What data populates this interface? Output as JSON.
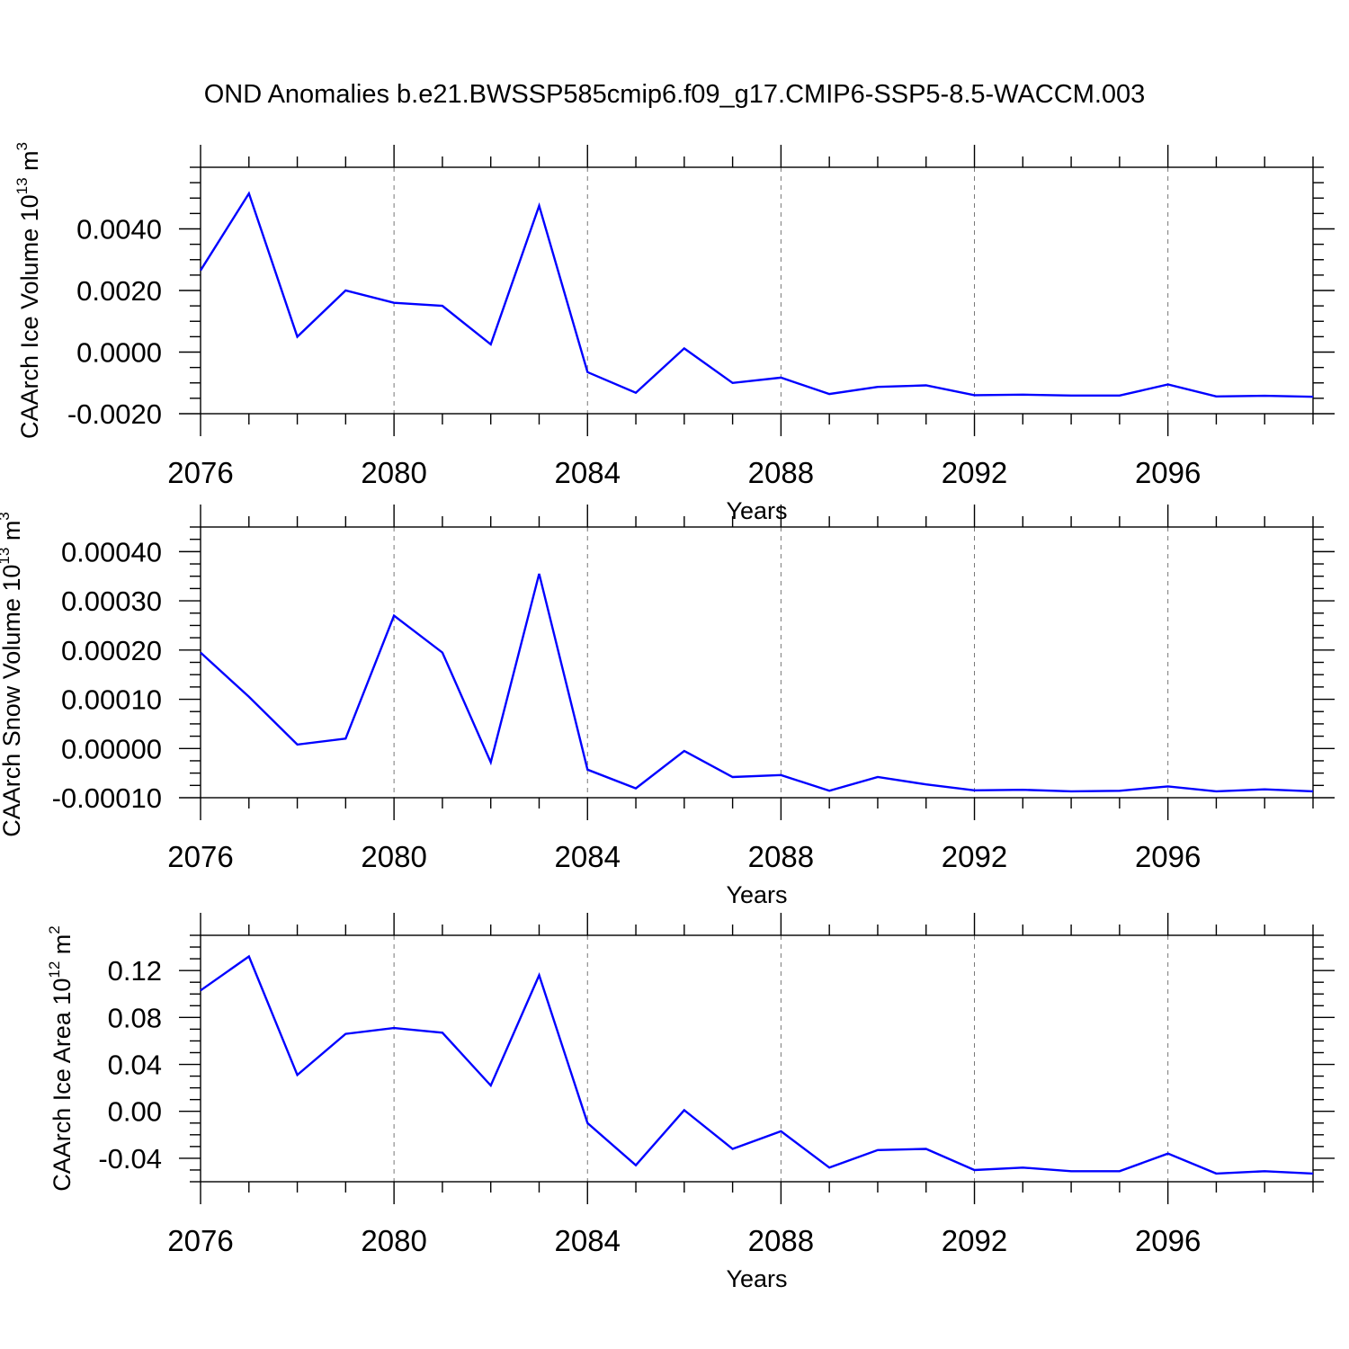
{
  "title": "OND Anomalies b.e21.BWSSP585cmip6.f09_g17.CMIP6-SSP5-8.5-WACCM.003",
  "colors": {
    "line": "#0000ff",
    "axis": "#000000",
    "grid": "#777777"
  },
  "chart_data": [
    {
      "type": "line",
      "xlabel": "Years",
      "ylabel": {
        "text": "CAArch Ice Volume 10",
        "exp": "13",
        "unit": " m",
        "unit_exp": "3"
      },
      "xlim": [
        2076,
        2099
      ],
      "ylim": [
        -0.002,
        0.006
      ],
      "xticks": [
        "2076",
        "2080",
        "2084",
        "2088",
        "2092",
        "2096"
      ],
      "yticks": [
        "-0.0020",
        "0.0000",
        "0.0020",
        "0.0040"
      ],
      "grid": "vertical dashed",
      "x": [
        2076,
        2077,
        2078,
        2079,
        2080,
        2081,
        2082,
        2083,
        2084,
        2085,
        2086,
        2087,
        2088,
        2089,
        2090,
        2091,
        2092,
        2093,
        2094,
        2095,
        2096,
        2097,
        2098,
        2099
      ],
      "values": [
        0.00265,
        0.00515,
        0.0005,
        0.002,
        0.0016,
        0.0015,
        0.00025,
        0.00475,
        -0.00065,
        -0.00132,
        0.00012,
        -0.001,
        -0.00083,
        -0.00136,
        -0.00113,
        -0.00108,
        -0.0014,
        -0.00138,
        -0.00141,
        -0.00141,
        -0.00105,
        -0.00144,
        -0.00142,
        -0.00145
      ]
    },
    {
      "type": "line",
      "xlabel": "Years",
      "ylabel": {
        "text": "CAArch Snow Volume 10",
        "exp": "13",
        "unit": " m",
        "unit_exp": "3"
      },
      "xlim": [
        2076,
        2099
      ],
      "ylim": [
        -0.0001,
        0.00045
      ],
      "xticks": [
        "2076",
        "2080",
        "2084",
        "2088",
        "2092",
        "2096"
      ],
      "yticks": [
        "-0.00010",
        "0.00000",
        "0.00010",
        "0.00020",
        "0.00030",
        "0.00040"
      ],
      "grid": "vertical dashed",
      "x": [
        2076,
        2077,
        2078,
        2079,
        2080,
        2081,
        2082,
        2083,
        2084,
        2085,
        2086,
        2087,
        2088,
        2089,
        2090,
        2091,
        2092,
        2093,
        2094,
        2095,
        2096,
        2097,
        2098,
        2099
      ],
      "values": [
        0.000195,
        0.000105,
        8e-06,
        2e-05,
        0.00027,
        0.000195,
        -2.8e-05,
        0.000355,
        -4.3e-05,
        -8.1e-05,
        -5e-06,
        -5.8e-05,
        -5.4e-05,
        -8.6e-05,
        -5.8e-05,
        -7.3e-05,
        -8.5e-05,
        -8.4e-05,
        -8.7e-05,
        -8.6e-05,
        -7.7e-05,
        -8.7e-05,
        -8.3e-05,
        -8.7e-05
      ]
    },
    {
      "type": "line",
      "xlabel": "Years",
      "ylabel": {
        "text": "CAArch Ice Area 10",
        "exp": "12",
        "unit": " m",
        "unit_exp": "2"
      },
      "xlim": [
        2076,
        2099
      ],
      "ylim": [
        -0.06,
        0.15
      ],
      "xticks": [
        "2076",
        "2080",
        "2084",
        "2088",
        "2092",
        "2096"
      ],
      "yticks": [
        "-0.04",
        "0.00",
        "0.04",
        "0.08",
        "0.12"
      ],
      "grid": "vertical dashed",
      "x": [
        2076,
        2077,
        2078,
        2079,
        2080,
        2081,
        2082,
        2083,
        2084,
        2085,
        2086,
        2087,
        2088,
        2089,
        2090,
        2091,
        2092,
        2093,
        2094,
        2095,
        2096,
        2097,
        2098,
        2099
      ],
      "values": [
        0.103,
        0.132,
        0.031,
        0.066,
        0.071,
        0.067,
        0.022,
        0.116,
        -0.01,
        -0.046,
        0.001,
        -0.032,
        -0.017,
        -0.048,
        -0.033,
        -0.032,
        -0.05,
        -0.048,
        -0.051,
        -0.051,
        -0.036,
        -0.053,
        -0.051,
        -0.053
      ]
    }
  ]
}
